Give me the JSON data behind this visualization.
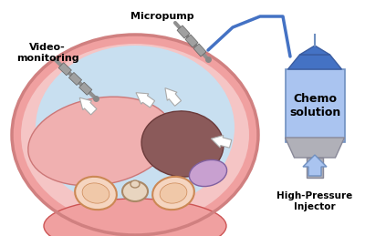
{
  "bg_color": "#ffffff",
  "abdomen_outer_color": "#f0a0a0",
  "abdomen_inner_color": "#c8dff0",
  "abdomen_skin_color": "#f5c5c5",
  "liver_color": "#f0b0b0",
  "liver_edge": "#cc7777",
  "dark_organ_color": "#8b5a5a",
  "dark_organ_edge": "#6b3a3a",
  "purple_organ_color": "#c8a0d0",
  "purple_organ_edge": "#8060a0",
  "kidney_color": "#f5d5c0",
  "kidney_edge": "#cc8855",
  "spine_color": "#e8d5c0",
  "spine_edge": "#aa8866",
  "muscle_color": "#f0a0a0",
  "muscle_edge": "#cc5555",
  "chemo_bag_blue": "#4472c4",
  "chemo_bag_light": "#aac4f0",
  "chemo_bag_gray": "#b0b0b8",
  "label_video": "Video-\nmonitoring",
  "label_micropump": "Micropump",
  "label_chemo": "Chemo\nsolution",
  "label_injector": "High-Pressure\nInjector",
  "tool_gray": "#909090",
  "tube_color": "#4472c4",
  "injector_arrow_fill": "#aac4f0",
  "injector_arrow_edge": "#7090c0",
  "abdomen_outline": "#d08080"
}
